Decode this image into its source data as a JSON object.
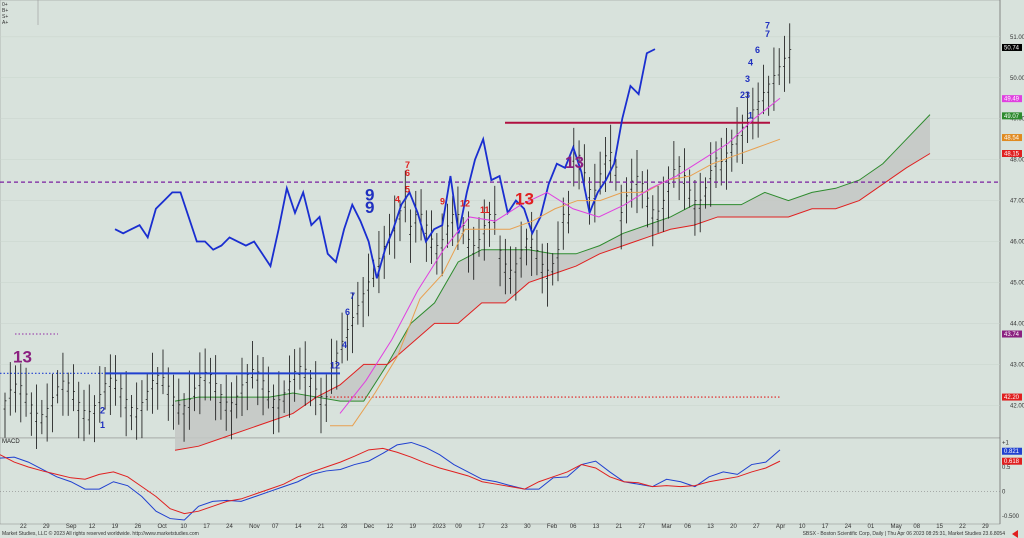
{
  "chart_data": [
    {
      "type": "bar",
      "subtype": "ohlc-price-with-ichimoku-and-td-sequential",
      "title": "",
      "ylim": [
        41.2,
        51.9
      ],
      "y_ticks": [
        "51.00",
        "50.00",
        "49.00",
        "48.00",
        "47.00",
        "46.00",
        "45.00",
        "44.00",
        "43.00",
        "42.00"
      ],
      "y_tick_values": [
        51,
        50,
        49,
        48,
        47,
        46,
        45,
        44,
        43,
        42
      ],
      "x_date_labels": [
        "22",
        "29",
        "Sep",
        "12",
        "19",
        "26",
        "Oct",
        "10",
        "17",
        "24",
        "Nov",
        "07",
        "14",
        "21",
        "28",
        "Dec",
        "12",
        "19",
        "2023",
        "09",
        "17",
        "23",
        "30",
        "Feb",
        "06",
        "13",
        "21",
        "27",
        "Mar",
        "06",
        "13",
        "20",
        "27",
        "Apr",
        "10",
        "17",
        "24",
        "01",
        "May",
        "08",
        "15",
        "22",
        "29"
      ],
      "price_labels": [
        {
          "value": 50.74,
          "text": "50.74",
          "color": "#000000"
        },
        {
          "value": 49.49,
          "text": "49.49",
          "color": "#e040e0"
        },
        {
          "value": 49.07,
          "text": "49.07",
          "color": "#2e8b2e"
        },
        {
          "value": 48.54,
          "text": "48.54",
          "color": "#e08a20"
        },
        {
          "value": 48.15,
          "text": "48.15",
          "color": "#e02020"
        },
        {
          "value": 43.74,
          "text": "43.74",
          "color": "#8b2080"
        },
        {
          "value": 42.2,
          "text": "42.20",
          "color": "#e02020"
        }
      ],
      "horizontal_lines": [
        {
          "value": 47.45,
          "color": "#7a1fa0",
          "style": "dashed",
          "x_from": 0,
          "x_to": 1.0
        },
        {
          "value": 42.2,
          "color": "#e02020",
          "style": "dotted",
          "x_from": 0.33,
          "x_to": 0.78
        },
        {
          "value": 43.74,
          "color": "#a050b0",
          "style": "dotted",
          "x_from": 0.015,
          "x_to": 0.058
        },
        {
          "value": 42.78,
          "color": "#2040d0",
          "style": "solid",
          "x_from": 0.105,
          "x_to": 0.34
        },
        {
          "value": 42.78,
          "color": "#2040d0",
          "style": "dotted",
          "x_from": 0.0,
          "x_to": 0.105
        },
        {
          "value": 48.9,
          "color": "#b01040",
          "style": "solid",
          "x_from": 0.505,
          "x_to": 0.77
        }
      ],
      "blue_line": [
        46.3,
        46.2,
        46.3,
        46.4,
        46.1,
        46.8,
        47.0,
        47.2,
        47.2,
        46.6,
        46.0,
        46.0,
        45.8,
        45.9,
        46.1,
        46.0,
        45.9,
        46.0,
        45.7,
        45.4,
        46.3,
        47.3,
        46.7,
        47.2,
        46.4,
        46.6,
        45.7,
        45.5,
        46.3,
        46.9,
        46.5,
        46.0,
        45.1,
        45.8,
        46.3,
        46.9,
        47.2,
        46.7,
        46.0,
        46.3,
        46.4,
        47.6,
        46.2,
        47.2,
        48.0,
        48.5,
        47.5,
        47.6,
        46.7,
        47.0,
        46.8,
        46.2,
        46.6,
        47.4,
        47.9,
        47.8,
        48.3,
        47.7,
        46.7,
        47.2,
        47.5,
        47.9,
        49.0,
        49.8,
        49.6,
        50.6,
        50.7
      ],
      "cloud_green": [
        42.1,
        42.2,
        42.2,
        42.2,
        42.2,
        42.3,
        42.2,
        42.1,
        42.1,
        43.0,
        44.0,
        44.5,
        45.5,
        45.8,
        45.8,
        45.8,
        45.7,
        45.7,
        45.9,
        46.2,
        46.4,
        46.6,
        46.9,
        46.9,
        46.9,
        47.2,
        47.0,
        47.2,
        47.3,
        47.5,
        47.9,
        48.5,
        49.1
      ],
      "cloud_red": [
        40.9,
        41.0,
        41.2,
        41.4,
        41.6,
        41.8,
        42.2,
        42.5,
        43.0,
        43.0,
        43.5,
        44.0,
        44.0,
        44.5,
        44.5,
        45.0,
        45.2,
        45.4,
        45.7,
        45.9,
        46.1,
        46.3,
        46.4,
        46.6,
        46.6,
        46.6,
        46.6,
        46.8,
        46.8,
        47.0,
        47.4,
        47.8,
        48.15
      ],
      "kijun": [
        41.5,
        41.5,
        42.3,
        43.2,
        44.6,
        45.2,
        46.3,
        46.3,
        46.3,
        46.5,
        46.8,
        47.0,
        47.0,
        47.2,
        47.2,
        47.5,
        47.6,
        47.9,
        48.1,
        48.3,
        48.5
      ],
      "tenkan": [
        41.8,
        42.6,
        43.6,
        44.8,
        45.8,
        46.6,
        46.5,
        46.9,
        47.2,
        46.8,
        46.6,
        46.9,
        47.3,
        47.6,
        48.0,
        48.4,
        49.0,
        49.5
      ],
      "td_counts": [
        {
          "x": 0.013,
          "v": 43.05,
          "text": "13",
          "color": "#8b2080",
          "big": true
        },
        {
          "x": 0.365,
          "v": 47.0,
          "text": "9",
          "color": "#2030c0",
          "big": true
        },
        {
          "x": 0.365,
          "v": 46.7,
          "text": "9",
          "color": "#2030c0",
          "big": true
        },
        {
          "x": 0.515,
          "v": 46.9,
          "text": "13",
          "color": "#e02020",
          "big": true
        },
        {
          "x": 0.565,
          "v": 47.8,
          "text": "13",
          "color": "#8b2080",
          "big": true
        },
        {
          "x": 0.405,
          "v": 47.8,
          "text": "7",
          "color": "#e02020",
          "big": false
        },
        {
          "x": 0.405,
          "v": 47.6,
          "text": "6",
          "color": "#e02020",
          "big": false
        },
        {
          "x": 0.405,
          "v": 47.2,
          "text": "5",
          "color": "#e02020",
          "big": false
        },
        {
          "x": 0.395,
          "v": 46.95,
          "text": "4",
          "color": "#e02020",
          "big": false
        },
        {
          "x": 0.44,
          "v": 46.9,
          "text": "9",
          "color": "#e02020",
          "big": false
        },
        {
          "x": 0.46,
          "v": 46.85,
          "text": "12",
          "color": "#e02020",
          "big": false
        },
        {
          "x": 0.48,
          "v": 46.7,
          "text": "11",
          "color": "#e02020",
          "big": false
        },
        {
          "x": 0.765,
          "v": 51.2,
          "text": "7",
          "color": "#2030c0",
          "big": false
        },
        {
          "x": 0.765,
          "v": 51.0,
          "text": "7",
          "color": "#2030c0",
          "big": false
        },
        {
          "x": 0.755,
          "v": 50.6,
          "text": "6",
          "color": "#2030c0",
          "big": false
        },
        {
          "x": 0.748,
          "v": 50.3,
          "text": "4",
          "color": "#2030c0",
          "big": false
        },
        {
          "x": 0.745,
          "v": 49.9,
          "text": "3",
          "color": "#2030c0",
          "big": false
        },
        {
          "x": 0.74,
          "v": 49.5,
          "text": "23",
          "color": "#2030c0",
          "big": false
        },
        {
          "x": 0.748,
          "v": 49.0,
          "text": "1",
          "color": "#2030c0",
          "big": false
        },
        {
          "x": 0.342,
          "v": 43.4,
          "text": "4",
          "color": "#2030c0",
          "big": false
        },
        {
          "x": 0.345,
          "v": 44.2,
          "text": "6",
          "color": "#2030c0",
          "big": false
        },
        {
          "x": 0.35,
          "v": 44.6,
          "text": "7",
          "color": "#2030c0",
          "big": false
        },
        {
          "x": 0.33,
          "v": 42.9,
          "text": "12",
          "color": "#2030c0",
          "big": false
        },
        {
          "x": 0.1,
          "v": 41.8,
          "text": "2",
          "color": "#2030c0",
          "big": false
        },
        {
          "x": 0.1,
          "v": 41.45,
          "text": "1",
          "color": "#2030c0",
          "big": false
        }
      ]
    },
    {
      "type": "line",
      "subtype": "macd",
      "label": "MACD",
      "ylim": [
        -0.62,
        1.05
      ],
      "y_ticks": [
        "+1",
        "0.5",
        "0",
        "-0.500"
      ],
      "y_tick_values": [
        1,
        0.5,
        0,
        -0.5
      ],
      "value_labels": [
        {
          "value": 0.821,
          "text": "0.821",
          "color": "#2040d0"
        },
        {
          "value": 0.618,
          "text": "0.618",
          "color": "#e02020"
        }
      ],
      "macd": [
        0.68,
        0.7,
        0.6,
        0.45,
        0.3,
        0.2,
        0.05,
        0.05,
        0.2,
        0.12,
        -0.1,
        -0.4,
        -0.55,
        -0.58,
        -0.3,
        -0.2,
        -0.18,
        -0.2,
        -0.1,
        0.0,
        0.1,
        0.2,
        0.35,
        0.42,
        0.45,
        0.55,
        0.62,
        0.78,
        0.95,
        1.0,
        0.9,
        0.75,
        0.55,
        0.4,
        0.25,
        0.2,
        0.12,
        0.05,
        0.05,
        0.28,
        0.3,
        0.55,
        0.62,
        0.4,
        0.2,
        0.15,
        0.1,
        0.25,
        0.2,
        0.1,
        0.3,
        0.4,
        0.35,
        0.55,
        0.6,
        0.85
      ],
      "signal": [
        0.75,
        0.6,
        0.5,
        0.42,
        0.35,
        0.28,
        0.25,
        0.35,
        0.4,
        0.3,
        0.1,
        -0.1,
        -0.35,
        -0.45,
        -0.4,
        -0.3,
        -0.2,
        -0.15,
        -0.05,
        0.05,
        0.15,
        0.3,
        0.4,
        0.5,
        0.6,
        0.72,
        0.85,
        0.88,
        0.8,
        0.7,
        0.58,
        0.48,
        0.4,
        0.32,
        0.2,
        0.15,
        0.1,
        0.05,
        0.2,
        0.3,
        0.4,
        0.55,
        0.48,
        0.3,
        0.2,
        0.18,
        0.1,
        0.12,
        0.1,
        0.12,
        0.2,
        0.25,
        0.3,
        0.4,
        0.48,
        0.62
      ]
    }
  ],
  "footer": {
    "left": "Market Studies, LLC © 2023 All rights reserved worldwide. http://www.marketstudies.com",
    "right": "SBSX - Boston Scientific Corp, Daily | Thu Apr 06 2023 08:25:31, Market Studies 23.6.8054"
  },
  "macd_panel_label": "MACD"
}
